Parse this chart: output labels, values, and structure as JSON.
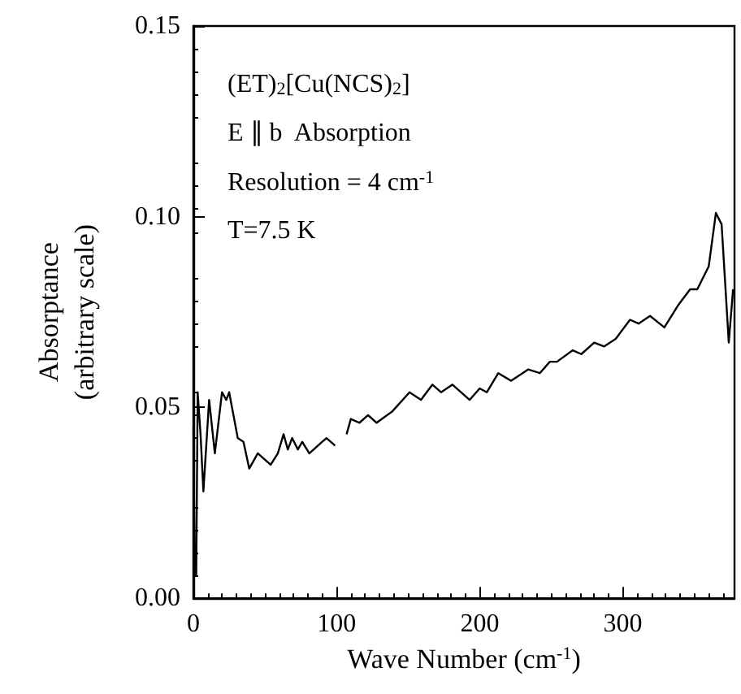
{
  "chart_data": {
    "type": "line",
    "xlabel": "Wave Number (cm$^{-1}$)",
    "ylabel": "Absorptance\n(arbitrary scale)",
    "annotations": [
      "(ET)$_{2}$[Cu(NCS)$_{2}$]",
      "E ∥ b  Absorption",
      "Resolution = 4 cm$^{-1}$",
      "T=7.5 K"
    ],
    "xlim": [
      0,
      378
    ],
    "xticks": [
      0,
      100,
      200,
      300
    ],
    "ylim": [
      0,
      0.15
    ],
    "yticks": [
      {
        "value": 0,
        "label": "0.00"
      },
      {
        "value": 0.05,
        "label": "0.05"
      },
      {
        "value": 0.1,
        "label": "0.10"
      },
      {
        "value": 0.15,
        "label": "0.15"
      }
    ],
    "grid": false,
    "marker": "none",
    "line_style": "solid",
    "series": [
      {
        "color": "#000000",
        "x": [
          0,
          1,
          2,
          3,
          5,
          7,
          11,
          15,
          20,
          23,
          25,
          31,
          35,
          39,
          45,
          54,
          59,
          63,
          66,
          69,
          73,
          76,
          81,
          87,
          90,
          93,
          99,
          101,
          107,
          110,
          116,
          122,
          128,
          139,
          151,
          159,
          167,
          173,
          181,
          193,
          200,
          205,
          213,
          222,
          234,
          242,
          249,
          254,
          265,
          271,
          280,
          287,
          295,
          305,
          311,
          319,
          329,
          339,
          347,
          349,
          352,
          360,
          365,
          369,
          374,
          377
        ],
        "values": [
          0.045,
          0.006,
          0.006,
          0.054,
          0.043,
          0.028,
          0.052,
          0.038,
          0.054,
          0.052,
          0.054,
          0.042,
          0.041,
          0.034,
          0.038,
          0.035,
          0.038,
          0.043,
          0.039,
          0.042,
          0.039,
          0.041,
          0.038,
          0.04,
          0.041,
          0.042,
          0.04,
          null,
          0.043,
          0.047,
          0.046,
          0.048,
          0.046,
          0.049,
          0.054,
          0.052,
          0.056,
          0.054,
          0.056,
          0.052,
          0.055,
          0.054,
          0.059,
          0.057,
          0.06,
          0.059,
          0.062,
          0.062,
          0.065,
          0.064,
          0.067,
          0.066,
          0.068,
          0.073,
          0.072,
          0.074,
          0.071,
          0.077,
          0.081,
          0.081,
          0.081,
          0.087,
          0.101,
          0.098,
          0.067,
          0.081
        ]
      }
    ]
  }
}
